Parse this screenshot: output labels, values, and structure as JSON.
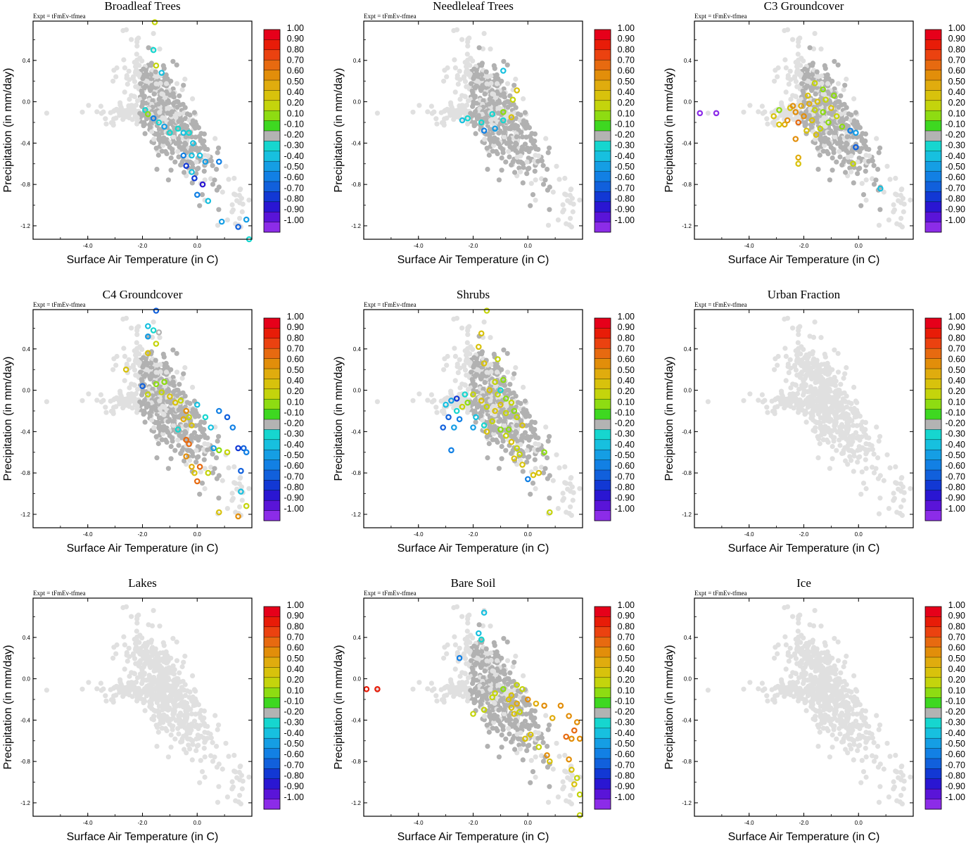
{
  "chart_data": {
    "type": "scatter",
    "expt_label": "Expt = tFmEv-tfmea",
    "xlabel": "Surface Air Temperature (in C)",
    "ylabel": "Precipitation (in mm/day)",
    "xlim": [
      -6.0,
      2.0
    ],
    "ylim": [
      -1.33,
      0.78
    ],
    "xticks": [
      -4.0,
      -2.0,
      0.0
    ],
    "xtick_labels": [
      "-4.0",
      "-2.0",
      "0.0"
    ],
    "yticks": [
      0.4,
      0.0,
      -0.4,
      -0.8,
      -1.2
    ],
    "ytick_labels": [
      "0.4",
      "0.0",
      "-0.4",
      "-0.8",
      "-1.2"
    ],
    "colorbar": {
      "labels": [
        "1.00",
        "0.90",
        "0.80",
        "0.70",
        "0.60",
        "0.50",
        "0.40",
        "0.20",
        "0.10",
        "-0.10",
        "-0.20",
        "-0.30",
        "-0.40",
        "-0.50",
        "-0.60",
        "-0.70",
        "-0.80",
        "-0.90",
        "-1.00"
      ],
      "colors": [
        "#e6001a",
        "#e81c08",
        "#eb4210",
        "#e76a10",
        "#e28e0a",
        "#e0ac0e",
        "#d8c20c",
        "#c4d40c",
        "#8edc12",
        "#3ed821",
        "#b3b3b3",
        "#16d6cf",
        "#17c0df",
        "#159ee4",
        "#1280e4",
        "#1160dc",
        "#1238d4",
        "#2a16d2",
        "#5a14d8",
        "#8c2ce8"
      ]
    },
    "background_colors": {
      "light": "#e0e0e0",
      "gray": "#b1b1b1"
    },
    "panels": [
      {
        "title": "Broadleaf Trees",
        "points": [
          [
            -1.6,
            0.5,
            -0.2
          ],
          [
            -1.5,
            0.35,
            0.2
          ],
          [
            -1.9,
            -0.08,
            -0.2
          ],
          [
            -1.8,
            -0.12,
            0.1
          ],
          [
            -1.6,
            -0.16,
            -0.5
          ],
          [
            -1.4,
            -0.2,
            -0.2
          ],
          [
            -1.2,
            -0.24,
            -0.4
          ],
          [
            -1.0,
            -0.3,
            -0.2
          ],
          [
            -0.7,
            -0.26,
            -0.2
          ],
          [
            -0.5,
            -0.3,
            -0.3
          ],
          [
            -0.3,
            -0.3,
            -0.2
          ],
          [
            -0.15,
            -0.4,
            -0.3
          ],
          [
            -0.5,
            -0.52,
            -0.5
          ],
          [
            -0.2,
            -0.52,
            -0.3
          ],
          [
            0.1,
            -0.52,
            -0.3
          ],
          [
            -0.4,
            -0.62,
            -0.7
          ],
          [
            -0.2,
            -0.68,
            -0.3
          ],
          [
            0.3,
            -0.58,
            -0.4
          ],
          [
            0.8,
            -0.58,
            -0.5
          ],
          [
            -0.1,
            -0.74,
            -0.7
          ],
          [
            0.2,
            -0.8,
            -0.8
          ],
          [
            0.0,
            -0.9,
            -0.5
          ],
          [
            0.4,
            -0.96,
            -0.3
          ],
          [
            0.9,
            -1.16,
            -0.4
          ],
          [
            1.5,
            -1.21,
            -0.6
          ],
          [
            1.8,
            -1.14,
            -0.4
          ],
          [
            1.9,
            -1.33,
            -0.2
          ],
          [
            -1.55,
            0.77,
            0.2
          ],
          [
            -1.3,
            0.28,
            -0.3
          ]
        ]
      },
      {
        "title": "Needleleaf Trees",
        "points": [
          [
            -0.9,
            0.3,
            -0.3
          ],
          [
            -0.4,
            0.11,
            0.4
          ],
          [
            -0.55,
            0.02,
            0.2
          ],
          [
            -0.9,
            -0.1,
            0.1
          ],
          [
            -1.3,
            -0.12,
            -0.2
          ],
          [
            -2.2,
            -0.16,
            -0.2
          ],
          [
            -2.4,
            -0.18,
            -0.3
          ],
          [
            -1.7,
            -0.2,
            -0.2
          ],
          [
            -1.2,
            -0.26,
            -0.4
          ],
          [
            -1.6,
            -0.28,
            -0.5
          ],
          [
            -0.9,
            -0.18,
            -0.2
          ],
          [
            -0.6,
            -0.15,
            0.3
          ]
        ]
      },
      {
        "title": "C3 Groundcover",
        "points": [
          [
            -5.8,
            -0.11,
            -1.0
          ],
          [
            -5.2,
            -0.11,
            -1.0
          ],
          [
            -2.9,
            -0.08,
            0.1
          ],
          [
            -2.6,
            -0.18,
            0.6
          ],
          [
            -2.5,
            -0.06,
            0.4
          ],
          [
            -2.3,
            -0.1,
            0.6
          ],
          [
            -2.2,
            -0.2,
            0.7
          ],
          [
            -2.1,
            -0.04,
            0.5
          ],
          [
            -2.0,
            -0.14,
            0.6
          ],
          [
            -1.9,
            -0.28,
            0.4
          ],
          [
            -1.8,
            -0.02,
            0.5
          ],
          [
            -1.7,
            -0.18,
            0.3
          ],
          [
            -1.6,
            -0.08,
            0.2
          ],
          [
            -1.5,
            0.0,
            0.4
          ],
          [
            -1.4,
            -0.26,
            0.2
          ],
          [
            -1.3,
            -0.1,
            0.1
          ],
          [
            -1.2,
            0.02,
            0.2
          ],
          [
            -1.1,
            -0.2,
            0.1
          ],
          [
            -1.0,
            -0.06,
            0.3
          ],
          [
            -0.9,
            0.06,
            0.1
          ],
          [
            -0.8,
            -0.14,
            0.2
          ],
          [
            -0.6,
            -0.24,
            0.1
          ],
          [
            -2.7,
            -0.22,
            0.5
          ],
          [
            -2.4,
            -0.04,
            0.6
          ],
          [
            -1.85,
            0.06,
            0.4
          ],
          [
            -1.55,
            -0.32,
            0.4
          ],
          [
            -2.3,
            -0.36,
            0.6
          ],
          [
            -2.2,
            -0.54,
            0.5
          ],
          [
            -2.2,
            -0.6,
            0.4
          ],
          [
            -1.3,
            0.12,
            0.1
          ],
          [
            -1.6,
            0.18,
            0.2
          ],
          [
            -0.3,
            -0.28,
            -0.5
          ],
          [
            -0.1,
            -0.3,
            -0.4
          ],
          [
            -0.1,
            -0.44,
            -0.6
          ],
          [
            0.8,
            -0.84,
            -0.3
          ],
          [
            -0.2,
            -0.6,
            0.2
          ],
          [
            -2.9,
            -0.22,
            0.4
          ],
          [
            -3.1,
            -0.14,
            0.3
          ]
        ]
      },
      {
        "title": "C4 Groundcover",
        "points": [
          [
            -1.5,
            0.77,
            -0.6
          ],
          [
            -1.8,
            0.62,
            -0.3
          ],
          [
            -1.6,
            0.58,
            -0.2
          ],
          [
            -1.5,
            0.45,
            0.2
          ],
          [
            -1.8,
            0.36,
            0.4
          ],
          [
            -1.4,
            0.56,
            -0.1
          ],
          [
            -2.6,
            0.2,
            0.3
          ],
          [
            -2.0,
            0.04,
            -0.6
          ],
          [
            -1.8,
            -0.04,
            0.2
          ],
          [
            -1.5,
            0.06,
            0.1
          ],
          [
            -1.3,
            -0.02,
            0.2
          ],
          [
            -1.2,
            0.08,
            0.1
          ],
          [
            -1.0,
            -0.06,
            0.3
          ],
          [
            -0.8,
            -0.12,
            0.4
          ],
          [
            -0.6,
            -0.1,
            0.2
          ],
          [
            -0.4,
            -0.2,
            0.6
          ],
          [
            -0.5,
            -0.28,
            0.5
          ],
          [
            -0.3,
            -0.26,
            0.2
          ],
          [
            -0.2,
            -0.34,
            0.4
          ],
          [
            0.0,
            -0.14,
            -0.3
          ],
          [
            0.3,
            -0.26,
            -0.2
          ],
          [
            0.5,
            -0.36,
            -0.3
          ],
          [
            0.8,
            -0.2,
            -0.5
          ],
          [
            1.1,
            -0.26,
            -0.6
          ],
          [
            1.3,
            -0.36,
            -0.5
          ],
          [
            1.5,
            -0.56,
            -0.7
          ],
          [
            1.7,
            -0.56,
            -0.6
          ],
          [
            1.8,
            -0.6,
            -0.5
          ],
          [
            1.6,
            -0.78,
            -0.6
          ],
          [
            -0.4,
            -0.48,
            0.7
          ],
          [
            -0.3,
            -0.52,
            0.7
          ],
          [
            -0.4,
            -0.64,
            0.6
          ],
          [
            -0.2,
            -0.74,
            0.5
          ],
          [
            0.1,
            -0.74,
            0.7
          ],
          [
            0.0,
            -0.88,
            0.7
          ],
          [
            -0.1,
            -0.8,
            0.4
          ],
          [
            0.4,
            -0.8,
            0.2
          ],
          [
            0.6,
            -0.56,
            -0.4
          ],
          [
            0.8,
            -0.58,
            0.1
          ],
          [
            1.1,
            -0.6,
            0.2
          ],
          [
            1.6,
            -0.98,
            -0.3
          ],
          [
            1.8,
            -1.12,
            0.2
          ],
          [
            1.5,
            -1.22,
            0.6
          ],
          [
            0.8,
            -1.18,
            0.3
          ],
          [
            -1.8,
            0.52,
            -0.4
          ],
          [
            -0.7,
            -0.38,
            -0.2
          ]
        ]
      },
      {
        "title": "Shrubs",
        "points": [
          [
            -1.5,
            0.77,
            0.2
          ],
          [
            -1.7,
            0.55,
            0.3
          ],
          [
            -1.8,
            0.42,
            0.3
          ],
          [
            -1.1,
            0.3,
            0.2
          ],
          [
            -1.6,
            0.26,
            0.3
          ],
          [
            -1.2,
            0.08,
            0.2
          ],
          [
            -1.4,
            0.0,
            0.3
          ],
          [
            -1.1,
            -0.04,
            0.2
          ],
          [
            -0.8,
            -0.08,
            0.1
          ],
          [
            -0.6,
            -0.12,
            0.2
          ],
          [
            -0.5,
            -0.2,
            0.1
          ],
          [
            -0.8,
            -0.22,
            0.2
          ],
          [
            -1.0,
            -0.14,
            0.4
          ],
          [
            -1.2,
            -0.2,
            0.3
          ],
          [
            -1.5,
            -0.16,
            0.2
          ],
          [
            -1.7,
            -0.1,
            0.3
          ],
          [
            -2.0,
            -0.04,
            0.2
          ],
          [
            -2.2,
            -0.12,
            0.1
          ],
          [
            -2.4,
            -0.16,
            0.2
          ],
          [
            -2.6,
            -0.2,
            -0.2
          ],
          [
            -2.8,
            -0.1,
            -0.4
          ],
          [
            -3.0,
            -0.14,
            -0.3
          ],
          [
            -2.5,
            -0.28,
            -0.5
          ],
          [
            -2.9,
            -0.26,
            -0.6
          ],
          [
            -2.6,
            -0.08,
            -0.7
          ],
          [
            -2.3,
            -0.04,
            -0.2
          ],
          [
            -2.7,
            -0.36,
            -0.4
          ],
          [
            -1.9,
            -0.26,
            -0.3
          ],
          [
            -2.0,
            -0.36,
            -0.4
          ],
          [
            -1.6,
            -0.34,
            -0.2
          ],
          [
            -1.3,
            -0.3,
            0.2
          ],
          [
            -1.0,
            -0.38,
            0.1
          ],
          [
            -0.8,
            -0.44,
            0.2
          ],
          [
            -0.6,
            -0.5,
            0.3
          ],
          [
            -0.4,
            -0.56,
            0.2
          ],
          [
            -0.3,
            -0.62,
            0.2
          ],
          [
            -0.2,
            -0.72,
            0.4
          ],
          [
            0.0,
            -0.86,
            -0.5
          ],
          [
            0.2,
            -0.82,
            0.3
          ],
          [
            0.4,
            -0.8,
            0.4
          ],
          [
            0.6,
            -0.6,
            0.1
          ],
          [
            0.8,
            -1.18,
            0.2
          ],
          [
            -1.0,
            0.0,
            -0.2
          ],
          [
            -0.9,
            0.1,
            0.1
          ],
          [
            -0.4,
            -0.26,
            0.2
          ],
          [
            -0.2,
            -0.34,
            0.3
          ],
          [
            -0.5,
            -0.66,
            0.3
          ],
          [
            -0.7,
            -0.38,
            0.1
          ],
          [
            -2.8,
            -0.58,
            -0.5
          ],
          [
            -3.1,
            -0.36,
            -0.6
          ],
          [
            -1.5,
            -0.4,
            0.3
          ]
        ]
      },
      {
        "title": "Urban Fraction",
        "points": []
      },
      {
        "title": "Lakes",
        "points": []
      },
      {
        "title": "Bare Soil",
        "points": [
          [
            -1.6,
            0.64,
            -0.3
          ],
          [
            -1.8,
            0.44,
            -0.3
          ],
          [
            -1.7,
            0.38,
            -0.2
          ],
          [
            -2.5,
            0.2,
            -0.5
          ],
          [
            -5.9,
            -0.1,
            0.9
          ],
          [
            -5.5,
            -0.1,
            0.9
          ],
          [
            -1.2,
            -0.14,
            0.2
          ],
          [
            -0.9,
            -0.1,
            0.1
          ],
          [
            -0.7,
            -0.2,
            0.4
          ],
          [
            -0.6,
            -0.16,
            0.3
          ],
          [
            -0.4,
            -0.06,
            0.2
          ],
          [
            -0.2,
            -0.1,
            0.2
          ],
          [
            -0.6,
            -0.28,
            0.4
          ],
          [
            -0.5,
            -0.34,
            0.3
          ],
          [
            -0.4,
            -0.24,
            0.5
          ],
          [
            -0.3,
            -0.32,
            0.2
          ],
          [
            0.0,
            -0.2,
            0.6
          ],
          [
            0.3,
            -0.24,
            0.5
          ],
          [
            0.6,
            -0.26,
            0.6
          ],
          [
            0.9,
            -0.38,
            0.5
          ],
          [
            1.2,
            -0.26,
            0.6
          ],
          [
            1.5,
            -0.36,
            0.6
          ],
          [
            1.8,
            -0.42,
            0.6
          ],
          [
            1.7,
            -0.5,
            0.7
          ],
          [
            1.9,
            -0.58,
            0.6
          ],
          [
            1.6,
            -0.58,
            0.6
          ],
          [
            1.4,
            -0.56,
            0.7
          ],
          [
            1.5,
            -0.78,
            0.6
          ],
          [
            1.6,
            -0.88,
            0.3
          ],
          [
            1.8,
            -0.96,
            0.2
          ],
          [
            1.7,
            -1.02,
            0.3
          ],
          [
            1.9,
            -1.12,
            0.2
          ],
          [
            1.9,
            -1.32,
            0.2
          ],
          [
            0.4,
            -0.66,
            0.2
          ],
          [
            0.7,
            -0.74,
            0.6
          ],
          [
            0.8,
            -0.8,
            0.4
          ],
          [
            0.1,
            -0.54,
            0.3
          ],
          [
            -0.1,
            -0.58,
            0.4
          ],
          [
            -2.0,
            -0.34,
            0.2
          ],
          [
            -1.6,
            -0.3,
            0.2
          ],
          [
            -1.3,
            -0.18,
            0.2
          ]
        ]
      },
      {
        "title": "Ice",
        "points": []
      }
    ]
  }
}
